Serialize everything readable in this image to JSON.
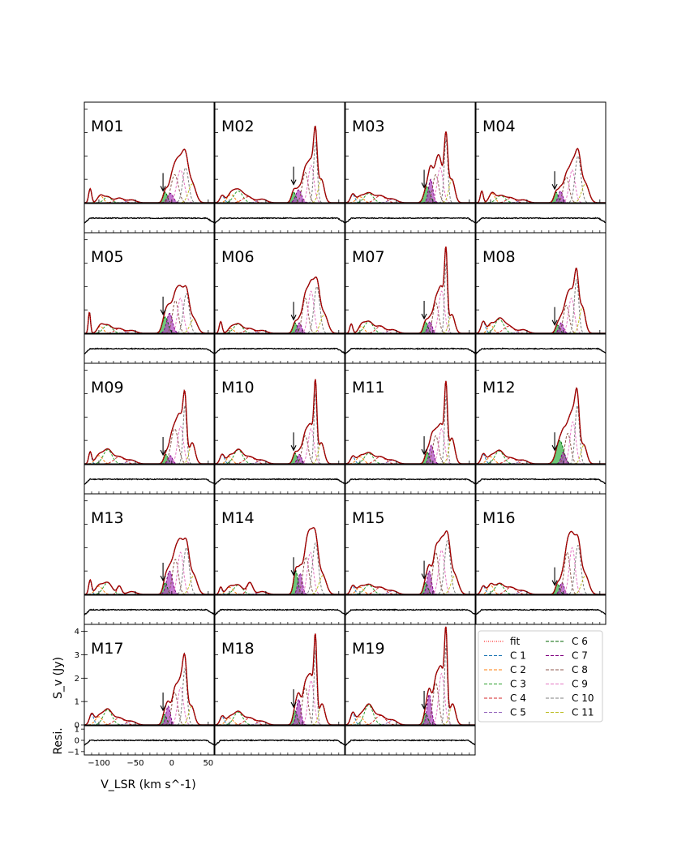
{
  "figure": {
    "panel_labels": [
      "M01",
      "M02",
      "M03",
      "M04",
      "M05",
      "M06",
      "M07",
      "M08",
      "M09",
      "M10",
      "M11",
      "M12",
      "M13",
      "M14",
      "M15",
      "M16",
      "M17",
      "M18",
      "M19"
    ],
    "ylabel_main": "S_v (Jy)",
    "ylabel_resi": "Resi.",
    "xlabel": "V_LSR (km s^-1)"
  },
  "legend": {
    "entries": [
      {
        "label": "fit",
        "color": "#ff0000",
        "dash": "1,1.5"
      },
      {
        "label": "C 1",
        "color": "#1f77b4",
        "dash": "4,2"
      },
      {
        "label": "C 2",
        "color": "#ff7f0e",
        "dash": "4,2"
      },
      {
        "label": "C 3",
        "color": "#2ca02c",
        "dash": "4,2"
      },
      {
        "label": "C 4",
        "color": "#d62728",
        "dash": "4,2"
      },
      {
        "label": "C 5",
        "color": "#9467bd",
        "dash": "4,2"
      },
      {
        "label": "C 6",
        "color": "#006400",
        "dash": "4,2"
      },
      {
        "label": "C 7",
        "color": "#800080",
        "dash": "4,2"
      },
      {
        "label": "C 8",
        "color": "#8c564b",
        "dash": "4,2"
      },
      {
        "label": "C 9",
        "color": "#e377c2",
        "dash": "4,2"
      },
      {
        "label": "C 10",
        "color": "#7f7f7f",
        "dash": "4,2"
      },
      {
        "label": "C 11",
        "color": "#bcbd22",
        "dash": "4,2"
      }
    ]
  },
  "chart_data": {
    "type": "line",
    "title": "",
    "xlabel": "V_LSR (km s^-1)",
    "ylabel": "S_v (Jy)",
    "residual_ylabel": "Resi.",
    "xlim": [
      -120,
      58
    ],
    "ylim": [
      0,
      4.3
    ],
    "resi_ylim": [
      -1.3,
      1.3
    ],
    "x_ticks": [
      -100,
      -50,
      0,
      50
    ],
    "x_tick_labels": [
      "−100",
      "−50",
      "0",
      "50"
    ],
    "y_ticks": [
      0,
      1,
      2,
      3,
      4
    ],
    "y_tick_labels": [
      "0",
      "1",
      "2",
      "3",
      "4"
    ],
    "resi_ticks": [
      -1,
      0,
      1
    ],
    "resi_tick_labels": [
      "−1",
      "0",
      "1"
    ],
    "component_colors": [
      "#1f77b4",
      "#ff7f0e",
      "#2ca02c",
      "#d62728",
      "#9467bd",
      "#006400",
      "#800080",
      "#8c564b",
      "#e377c2",
      "#7f7f7f",
      "#bcbd22"
    ],
    "arrow_velocity": -12,
    "panels": [
      {
        "label": "M01",
        "comps": [
          [
            -112,
            0.6,
            2
          ],
          [
            -98,
            0.3,
            4
          ],
          [
            -88,
            0.25,
            5
          ],
          [
            -72,
            0.2,
            6
          ],
          [
            -55,
            0.12,
            6
          ],
          [
            -9,
            0.45,
            3
          ],
          [
            -2,
            0.4,
            4
          ],
          [
            4,
            1.2,
            5
          ],
          [
            12,
            1.4,
            5
          ],
          [
            19,
            1.5,
            4
          ],
          [
            28,
            0.8,
            5
          ]
        ]
      },
      {
        "label": "M02",
        "comps": [
          [
            -110,
            0.3,
            3
          ],
          [
            -98,
            0.35,
            5
          ],
          [
            -88,
            0.5,
            6
          ],
          [
            -75,
            0.25,
            7
          ],
          [
            -55,
            0.15,
            6
          ],
          [
            -12,
            0.45,
            3
          ],
          [
            -5,
            0.55,
            4
          ],
          [
            4,
            1.3,
            4
          ],
          [
            12,
            1.6,
            4
          ],
          [
            18,
            2.6,
            2.5
          ],
          [
            26,
            1.0,
            4
          ]
        ]
      },
      {
        "label": "M03",
        "comps": [
          [
            -110,
            0.35,
            3
          ],
          [
            -100,
            0.25,
            5
          ],
          [
            -88,
            0.4,
            6
          ],
          [
            -72,
            0.3,
            7
          ],
          [
            -55,
            0.15,
            6
          ],
          [
            -8,
            0.7,
            4
          ],
          [
            -3,
            1.0,
            3
          ],
          [
            4,
            1.2,
            4
          ],
          [
            10,
            1.5,
            4
          ],
          [
            18,
            2.7,
            2.5
          ],
          [
            26,
            1.0,
            4
          ]
        ]
      },
      {
        "label": "M04",
        "comps": [
          [
            -112,
            0.5,
            2
          ],
          [
            -98,
            0.4,
            4
          ],
          [
            -86,
            0.3,
            6
          ],
          [
            -72,
            0.2,
            6
          ],
          [
            -55,
            0.12,
            6
          ],
          [
            -10,
            0.45,
            3
          ],
          [
            -4,
            0.5,
            3
          ],
          [
            4,
            1.1,
            4
          ],
          [
            12,
            1.4,
            4
          ],
          [
            20,
            2.0,
            4
          ],
          [
            30,
            0.8,
            5
          ]
        ]
      },
      {
        "label": "M05",
        "comps": [
          [
            -113,
            0.9,
            1.5
          ],
          [
            -98,
            0.3,
            4
          ],
          [
            -88,
            0.35,
            6
          ],
          [
            -72,
            0.2,
            6
          ],
          [
            -55,
            0.12,
            6
          ],
          [
            -9,
            0.7,
            4
          ],
          [
            -3,
            0.85,
            4
          ],
          [
            5,
            1.4,
            4
          ],
          [
            12,
            1.5,
            4
          ],
          [
            20,
            1.7,
            4
          ],
          [
            30,
            0.6,
            5
          ]
        ]
      },
      {
        "label": "M06",
        "comps": [
          [
            -112,
            0.5,
            2
          ],
          [
            -98,
            0.2,
            4
          ],
          [
            -88,
            0.4,
            6
          ],
          [
            -72,
            0.2,
            6
          ],
          [
            -55,
            0.12,
            6
          ],
          [
            -10,
            0.45,
            3
          ],
          [
            -4,
            0.45,
            3
          ],
          [
            4,
            1.5,
            4
          ],
          [
            12,
            1.8,
            4
          ],
          [
            20,
            2.0,
            4
          ],
          [
            30,
            0.8,
            5
          ]
        ]
      },
      {
        "label": "M07",
        "comps": [
          [
            -112,
            0.4,
            2
          ],
          [
            -98,
            0.3,
            4
          ],
          [
            -88,
            0.5,
            6
          ],
          [
            -72,
            0.3,
            6
          ],
          [
            -55,
            0.15,
            6
          ],
          [
            -10,
            0.5,
            3
          ],
          [
            -4,
            0.5,
            3
          ],
          [
            4,
            1.3,
            4
          ],
          [
            12,
            1.8,
            4
          ],
          [
            18,
            3.0,
            2
          ],
          [
            26,
            0.8,
            4
          ]
        ]
      },
      {
        "label": "M08",
        "comps": [
          [
            -110,
            0.5,
            3
          ],
          [
            -100,
            0.35,
            4
          ],
          [
            -88,
            0.6,
            6
          ],
          [
            -75,
            0.3,
            7
          ],
          [
            -55,
            0.15,
            6
          ],
          [
            -8,
            0.35,
            3
          ],
          [
            -3,
            0.45,
            3
          ],
          [
            4,
            1.2,
            4
          ],
          [
            11,
            1.5,
            4
          ],
          [
            18,
            2.3,
            3
          ],
          [
            26,
            1.1,
            4
          ]
        ]
      },
      {
        "label": "M09",
        "comps": [
          [
            -112,
            0.5,
            2
          ],
          [
            -100,
            0.35,
            5
          ],
          [
            -88,
            0.6,
            6
          ],
          [
            -72,
            0.3,
            7
          ],
          [
            -55,
            0.15,
            6
          ],
          [
            -8,
            0.4,
            3
          ],
          [
            -2,
            0.35,
            3
          ],
          [
            4,
            1.5,
            5
          ],
          [
            12,
            1.6,
            4
          ],
          [
            18,
            2.5,
            2.5
          ],
          [
            28,
            0.9,
            4
          ]
        ]
      },
      {
        "label": "M10",
        "comps": [
          [
            -110,
            0.4,
            3
          ],
          [
            -100,
            0.3,
            4
          ],
          [
            -88,
            0.6,
            6
          ],
          [
            -72,
            0.3,
            7
          ],
          [
            -55,
            0.15,
            6
          ],
          [
            -10,
            0.45,
            3
          ],
          [
            -4,
            0.4,
            3
          ],
          [
            4,
            1.2,
            4
          ],
          [
            12,
            1.5,
            4
          ],
          [
            18,
            3.0,
            2
          ],
          [
            26,
            0.9,
            4
          ]
        ]
      },
      {
        "label": "M11",
        "comps": [
          [
            -110,
            0.3,
            3
          ],
          [
            -100,
            0.3,
            5
          ],
          [
            -88,
            0.45,
            6
          ],
          [
            -72,
            0.3,
            7
          ],
          [
            -55,
            0.15,
            6
          ],
          [
            -8,
            0.5,
            3
          ],
          [
            -2,
            0.8,
            3
          ],
          [
            4,
            1.2,
            4
          ],
          [
            12,
            1.5,
            4
          ],
          [
            18,
            2.9,
            2
          ],
          [
            26,
            1.1,
            4
          ]
        ]
      },
      {
        "label": "M12",
        "comps": [
          [
            -110,
            0.4,
            3
          ],
          [
            -100,
            0.3,
            5
          ],
          [
            -88,
            0.55,
            6
          ],
          [
            -72,
            0.25,
            7
          ],
          [
            -55,
            0.15,
            6
          ],
          [
            -5,
            1.0,
            5
          ],
          [
            0,
            0.5,
            3
          ],
          [
            6,
            1.3,
            4
          ],
          [
            13,
            1.8,
            4
          ],
          [
            19,
            2.5,
            3
          ],
          [
            28,
            0.8,
            4
          ]
        ]
      },
      {
        "label": "M13",
        "comps": [
          [
            -112,
            0.6,
            2
          ],
          [
            -100,
            0.35,
            5
          ],
          [
            -88,
            0.5,
            6
          ],
          [
            -72,
            0.35,
            3
          ],
          [
            -55,
            0.12,
            6
          ],
          [
            -9,
            0.5,
            3
          ],
          [
            -3,
            1.0,
            4
          ],
          [
            5,
            1.5,
            4
          ],
          [
            12,
            1.8,
            4
          ],
          [
            20,
            2.0,
            4
          ],
          [
            30,
            0.8,
            5
          ]
        ]
      },
      {
        "label": "M14",
        "comps": [
          [
            -112,
            0.3,
            2
          ],
          [
            -100,
            0.3,
            5
          ],
          [
            -88,
            0.4,
            6
          ],
          [
            -72,
            0.5,
            4
          ],
          [
            -55,
            0.12,
            6
          ],
          [
            -9,
            1.0,
            3
          ],
          [
            -3,
            0.9,
            3
          ],
          [
            5,
            1.6,
            4
          ],
          [
            11,
            1.8,
            4
          ],
          [
            18,
            2.2,
            4
          ],
          [
            28,
            0.8,
            5
          ]
        ]
      },
      {
        "label": "M15",
        "comps": [
          [
            -110,
            0.35,
            3
          ],
          [
            -100,
            0.3,
            5
          ],
          [
            -88,
            0.4,
            6
          ],
          [
            -72,
            0.3,
            7
          ],
          [
            -55,
            0.15,
            6
          ],
          [
            -10,
            0.5,
            3
          ],
          [
            -5,
            1.0,
            3
          ],
          [
            4,
            1.8,
            4
          ],
          [
            12,
            1.9,
            4
          ],
          [
            20,
            2.3,
            4
          ],
          [
            30,
            0.8,
            5
          ]
        ]
      },
      {
        "label": "M16",
        "comps": [
          [
            -110,
            0.35,
            3
          ],
          [
            -100,
            0.4,
            4
          ],
          [
            -88,
            0.45,
            6
          ],
          [
            -72,
            0.3,
            7
          ],
          [
            -55,
            0.15,
            6
          ],
          [
            -8,
            0.45,
            3
          ],
          [
            -2,
            0.5,
            3
          ],
          [
            5,
            1.8,
            4
          ],
          [
            12,
            2.0,
            4
          ],
          [
            20,
            2.1,
            4
          ],
          [
            30,
            0.8,
            5
          ]
        ]
      },
      {
        "label": "M17",
        "comps": [
          [
            -110,
            0.45,
            3
          ],
          [
            -100,
            0.35,
            5
          ],
          [
            -88,
            0.65,
            6
          ],
          [
            -72,
            0.3,
            7
          ],
          [
            -55,
            0.15,
            6
          ],
          [
            -10,
            0.45,
            3
          ],
          [
            -5,
            0.8,
            3
          ],
          [
            4,
            1.4,
            4
          ],
          [
            12,
            1.6,
            4
          ],
          [
            18,
            2.4,
            3
          ],
          [
            27,
            0.8,
            4
          ]
        ]
      },
      {
        "label": "M18",
        "comps": [
          [
            -110,
            0.35,
            3
          ],
          [
            -100,
            0.3,
            5
          ],
          [
            -88,
            0.55,
            6
          ],
          [
            -72,
            0.3,
            7
          ],
          [
            -55,
            0.15,
            6
          ],
          [
            -10,
            0.6,
            3
          ],
          [
            -5,
            1.1,
            3
          ],
          [
            4,
            1.6,
            4
          ],
          [
            12,
            1.9,
            4
          ],
          [
            18,
            3.2,
            2
          ],
          [
            27,
            0.9,
            4
          ]
        ]
      },
      {
        "label": "M19",
        "comps": [
          [
            -110,
            0.5,
            3
          ],
          [
            -100,
            0.35,
            5
          ],
          [
            -88,
            0.85,
            6
          ],
          [
            -72,
            0.4,
            7
          ],
          [
            -55,
            0.2,
            6
          ],
          [
            -10,
            0.5,
            3
          ],
          [
            -5,
            1.3,
            3
          ],
          [
            4,
            1.8,
            4
          ],
          [
            12,
            2.2,
            4
          ],
          [
            18,
            3.4,
            2
          ],
          [
            27,
            0.9,
            4
          ]
        ]
      }
    ]
  }
}
